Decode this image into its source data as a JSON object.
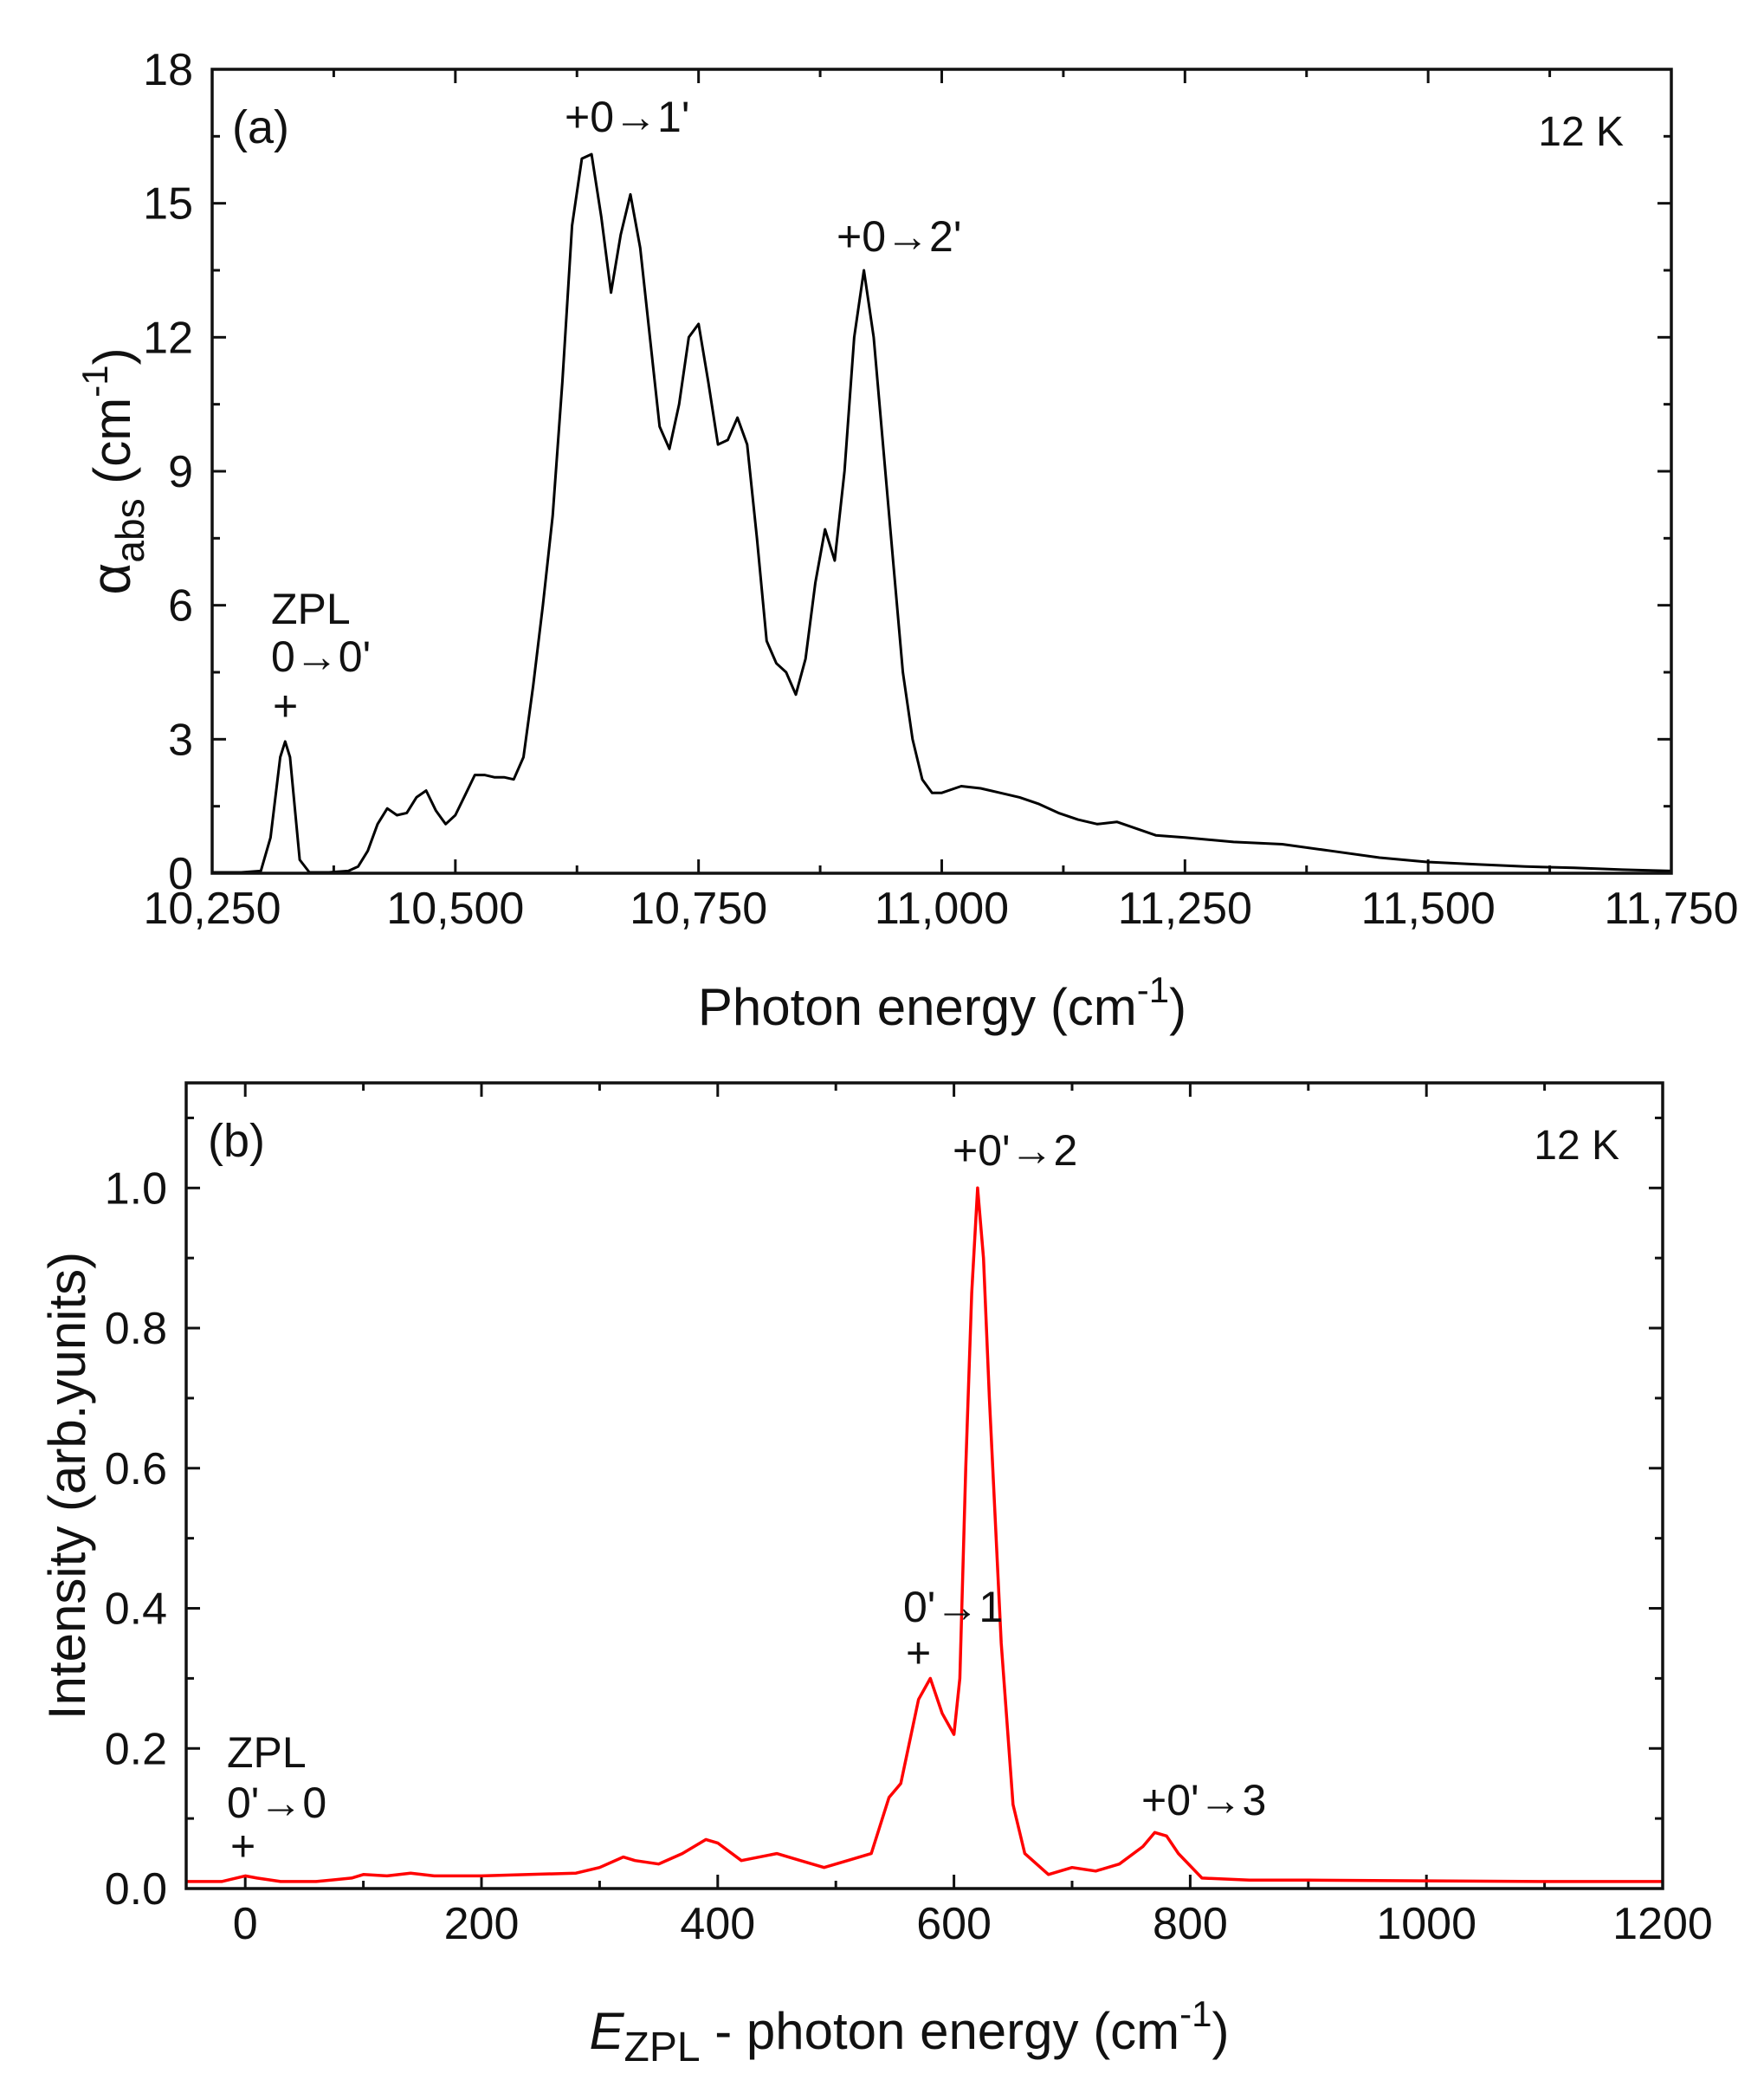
{
  "chart_data": [
    {
      "type": "line",
      "panel_label": "(a)",
      "temperature_label": "12 K",
      "xlabel": "Photon energy (cm⁻¹)",
      "xlabel_main": "Photon energy (cm",
      "xlabel_sup": "-1",
      "xlabel_tail": ")",
      "ylabel": "αabs (cm⁻¹)",
      "ylabel_symbol": "α",
      "ylabel_sub": "abs",
      "ylabel_unit": " (cm",
      "ylabel_sup": "-1",
      "ylabel_tail": ")",
      "xlim": [
        10250,
        11750
      ],
      "ylim": [
        0,
        18
      ],
      "xticks": [
        10250,
        10500,
        10750,
        11000,
        11250,
        11500,
        11750
      ],
      "xtick_labels": [
        "10,250",
        "10,500",
        "10,750",
        "11,000",
        "11,250",
        "11,500",
        "11,750"
      ],
      "yticks": [
        0,
        3,
        6,
        9,
        12,
        15,
        18
      ],
      "ytick_labels": [
        "0",
        "3",
        "6",
        "9",
        "12",
        "15",
        "18"
      ],
      "line_color": "#000000",
      "series": [
        {
          "name": "absorption",
          "x": [
            10250,
            10280,
            10300,
            10310,
            10320,
            10325,
            10330,
            10340,
            10350,
            10370,
            10390,
            10400,
            10410,
            10420,
            10430,
            10440,
            10450,
            10460,
            10470,
            10480,
            10490,
            10500,
            10510,
            10520,
            10530,
            10540,
            10550,
            10560,
            10570,
            10580,
            10590,
            10600,
            10610,
            10620,
            10630,
            10640,
            10650,
            10660,
            10670,
            10680,
            10690,
            10700,
            10710,
            10720,
            10730,
            10740,
            10750,
            10760,
            10770,
            10780,
            10790,
            10800,
            10810,
            10820,
            10830,
            10840,
            10850,
            10860,
            10870,
            10880,
            10890,
            10900,
            10910,
            10920,
            10930,
            10940,
            10950,
            10960,
            10970,
            10980,
            10990,
            11000,
            11020,
            11040,
            11060,
            11080,
            11100,
            11120,
            11140,
            11160,
            11180,
            11200,
            11220,
            11250,
            11300,
            11350,
            11400,
            11450,
            11500,
            11550,
            11600,
            11650,
            11700,
            11750
          ],
          "values": [
            0.02,
            0.02,
            0.05,
            0.8,
            2.6,
            2.95,
            2.6,
            0.3,
            0.02,
            0.02,
            0.05,
            0.15,
            0.5,
            1.1,
            1.45,
            1.3,
            1.35,
            1.7,
            1.85,
            1.4,
            1.1,
            1.3,
            1.75,
            2.2,
            2.2,
            2.15,
            2.15,
            2.1,
            2.6,
            4.2,
            6.0,
            8.0,
            11.0,
            14.5,
            16.0,
            16.1,
            14.7,
            13.0,
            14.3,
            15.2,
            14.0,
            12.0,
            10.0,
            9.5,
            10.5,
            12.0,
            12.3,
            11.0,
            9.6,
            9.7,
            10.2,
            9.6,
            7.5,
            5.2,
            4.7,
            4.5,
            4.0,
            4.8,
            6.5,
            7.7,
            7.0,
            9.0,
            12.0,
            13.5,
            12.0,
            9.5,
            7.0,
            4.5,
            3.0,
            2.1,
            1.8,
            1.8,
            1.95,
            1.9,
            1.8,
            1.7,
            1.55,
            1.35,
            1.2,
            1.1,
            1.15,
            1.0,
            0.85,
            0.8,
            0.7,
            0.65,
            0.5,
            0.35,
            0.25,
            0.2,
            0.15,
            0.12,
            0.08,
            0.05
          ]
        }
      ],
      "annotations": [
        {
          "name": "zpl-label-a",
          "lines": [
            "ZPL",
            "0→0'"
          ],
          "marker": "+"
        },
        {
          "name": "peak-label-0-1p",
          "lines": [
            "+0→1'"
          ]
        },
        {
          "name": "peak-label-0-2p",
          "lines": [
            "+0→2'"
          ]
        }
      ]
    },
    {
      "type": "line",
      "panel_label": "(b)",
      "temperature_label": "12 K",
      "xlabel": "EZPL - photon energy (cm⁻¹)",
      "xlabel_italic": "E",
      "xlabel_sub": "ZPL",
      "xlabel_main": " - photon energy (cm",
      "xlabel_sup": "-1",
      "xlabel_tail": ")",
      "ylabel": "Intensity (arb.yunits)",
      "xlim": [
        -50,
        1200
      ],
      "ylim": [
        0,
        1.15
      ],
      "xticks": [
        0,
        200,
        400,
        600,
        800,
        1000,
        1200
      ],
      "xtick_labels": [
        "0",
        "200",
        "400",
        "600",
        "800",
        "1000",
        "1200"
      ],
      "yticks": [
        0,
        0.2,
        0.4,
        0.6,
        0.8,
        1.0
      ],
      "ytick_labels": [
        "0.0",
        "0.2",
        "0.4",
        "0.6",
        "0.8",
        "1.0"
      ],
      "line_color": "#ff0000",
      "series": [
        {
          "name": "emission",
          "x": [
            -50,
            -20,
            0,
            10,
            30,
            60,
            90,
            100,
            120,
            140,
            160,
            200,
            240,
            280,
            300,
            320,
            330,
            350,
            370,
            390,
            400,
            420,
            450,
            470,
            490,
            510,
            530,
            545,
            555,
            570,
            580,
            590,
            600,
            605,
            610,
            615,
            620,
            625,
            630,
            640,
            650,
            660,
            680,
            700,
            720,
            740,
            760,
            770,
            780,
            790,
            810,
            850,
            900,
            1000,
            1100,
            1200
          ],
          "values": [
            0.01,
            0.01,
            0.018,
            0.015,
            0.01,
            0.01,
            0.015,
            0.02,
            0.018,
            0.022,
            0.018,
            0.018,
            0.02,
            0.022,
            0.03,
            0.045,
            0.04,
            0.035,
            0.05,
            0.07,
            0.065,
            0.04,
            0.05,
            0.04,
            0.03,
            0.04,
            0.05,
            0.13,
            0.15,
            0.27,
            0.3,
            0.25,
            0.22,
            0.3,
            0.6,
            0.85,
            1.0,
            0.9,
            0.7,
            0.35,
            0.12,
            0.05,
            0.02,
            0.03,
            0.025,
            0.035,
            0.06,
            0.08,
            0.075,
            0.05,
            0.015,
            0.012,
            0.012,
            0.011,
            0.01,
            0.01
          ]
        }
      ],
      "annotations": [
        {
          "name": "zpl-label-b",
          "lines": [
            "ZPL",
            "0'→0"
          ],
          "marker": "+"
        },
        {
          "name": "peak-label-0p-1",
          "lines": [
            "0'→1"
          ],
          "marker": "+"
        },
        {
          "name": "peak-label-0p-2",
          "lines": [
            "+0'→2"
          ]
        },
        {
          "name": "peak-label-0p-3",
          "lines": [
            "+0'→3"
          ]
        }
      ]
    }
  ]
}
